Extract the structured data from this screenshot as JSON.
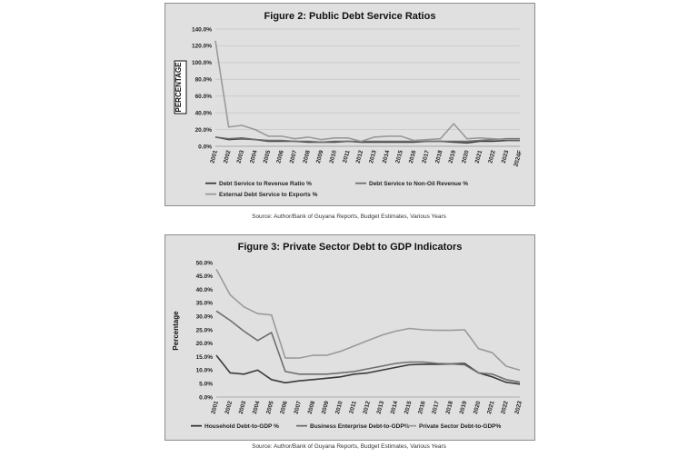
{
  "chart_data": [
    {
      "type": "line",
      "title": "Figure 2: Public Debt Service Ratios",
      "ylabel": "PERCENTAGE",
      "xlabel": "",
      "ylim": [
        0,
        140
      ],
      "yticks": [
        "0.0%",
        "20.0%",
        "40.0%",
        "60.0%",
        "80.0%",
        "100.0%",
        "120.0%",
        "140.0%"
      ],
      "grid": true,
      "legend_position": "bottom",
      "categories": [
        "2001",
        "2002",
        "2003",
        "2004",
        "2005",
        "2006",
        "2007",
        "2008",
        "2009",
        "2010",
        "2011",
        "2012",
        "2013",
        "2014",
        "2015",
        "2016",
        "2017",
        "2018",
        "2019",
        "2020",
        "2021",
        "2022",
        "2023",
        "2024F"
      ],
      "series": [
        {
          "name": "Debt Service to Revenue Ratio %",
          "color": "#3a3a3a",
          "values": [
            11,
            8,
            9,
            8,
            6,
            6,
            6,
            5,
            5,
            5,
            6,
            5,
            5,
            5,
            5,
            5,
            6,
            6,
            5,
            4,
            6,
            6,
            7,
            7
          ]
        },
        {
          "name": "Debt Service to Non-Oil Revenue %",
          "color": "#6e6e6e",
          "values": [
            11,
            9,
            10,
            8,
            7,
            7,
            6,
            6,
            5,
            6,
            6,
            6,
            6,
            6,
            6,
            6,
            6,
            6,
            6,
            6,
            7,
            8,
            9,
            9
          ]
        },
        {
          "name": "External Debt Service to Exports %",
          "color": "#9a9a9a",
          "values": [
            126,
            23,
            25,
            20,
            12,
            12,
            9,
            11,
            8,
            10,
            10,
            6,
            11,
            12,
            12,
            7,
            8,
            9,
            27,
            9,
            10,
            9,
            8,
            8
          ]
        }
      ],
      "source": "Source: Author/Bank of Guyana Reports, Budget Estimates, Various Years"
    },
    {
      "type": "line",
      "title": "Figure 3:  Private Sector Debt to GDP Indicators",
      "ylabel": "Percentage",
      "xlabel": "",
      "ylim": [
        0,
        50
      ],
      "yticks": [
        "0.0%",
        "5.0%",
        "10.0%",
        "15.0%",
        "20.0%",
        "25.0%",
        "30.0%",
        "35.0%",
        "40.0%",
        "45.0%",
        "50.0%"
      ],
      "grid": false,
      "legend_position": "bottom",
      "categories": [
        "2001",
        "2002",
        "2003",
        "2004",
        "2005",
        "2006",
        "2007",
        "2008",
        "2009",
        "2010",
        "2011",
        "2012",
        "2013",
        "2014",
        "2015",
        "2016",
        "2017",
        "2018",
        "2019",
        "2020",
        "2021",
        "2022",
        "2023"
      ],
      "series": [
        {
          "name": "Household Debt-to-GDP %",
          "color": "#3a3a3a",
          "values": [
            15.5,
            9,
            8.5,
            10,
            6.5,
            5.3,
            6,
            6.5,
            7,
            7.5,
            8.5,
            9,
            10,
            11,
            12,
            12.2,
            12.2,
            12.3,
            12.5,
            9,
            7.5,
            5.5,
            4.8
          ]
        },
        {
          "name": "Business Enterprise Debt-to-GDP%",
          "color": "#6e6e6e",
          "values": [
            32,
            28.5,
            24.5,
            21,
            24,
            9.5,
            8.5,
            8.5,
            8.5,
            9,
            9.5,
            10.5,
            11.5,
            12.5,
            13,
            13,
            12.5,
            12.3,
            12,
            9,
            8.5,
            6.5,
            5.5
          ]
        },
        {
          "name": "Private Sector Debt-to-GDP%",
          "color": "#9a9a9a",
          "values": [
            47.5,
            38,
            33.5,
            31,
            30.5,
            14.5,
            14.5,
            15.5,
            15.5,
            17,
            19,
            21,
            23,
            24.5,
            25.5,
            25,
            24.8,
            24.8,
            25,
            18,
            16.5,
            11.5,
            10
          ]
        }
      ],
      "source": "Source: Author/Bank of Guyana Reports, Budget Estimates, Various Years"
    }
  ]
}
